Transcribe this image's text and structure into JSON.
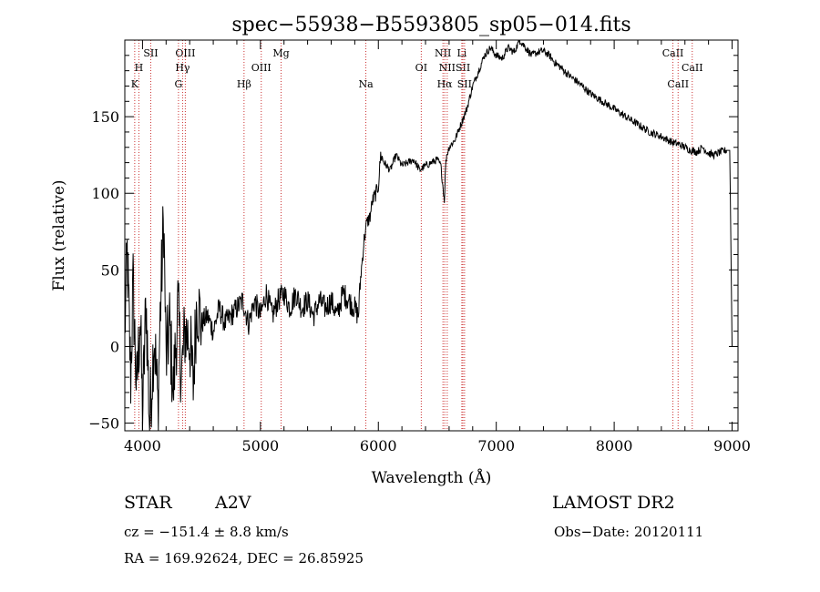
{
  "chart_data": {
    "type": "line",
    "title": "spec−55938−B5593805_sp05−014.fits",
    "xlabel": "Wavelength (Å)",
    "ylabel": "Flux (relative)",
    "xlim": [
      3850,
      9050
    ],
    "ylim": [
      -55,
      200
    ],
    "xticks": [
      4000,
      5000,
      6000,
      7000,
      8000,
      9000
    ],
    "xtick_labels": [
      "4000",
      "5000",
      "6000",
      "7000",
      "8000",
      "9000"
    ],
    "yticks": [
      -50,
      0,
      50,
      100,
      150
    ],
    "ytick_labels": [
      "−50",
      "0",
      "50",
      "100",
      "150"
    ],
    "series": [
      {
        "x": [
          3850,
          3870,
          3900,
          3920,
          3950,
          3980,
          4000,
          4030,
          4060,
          4100,
          4130,
          4150,
          4180,
          4200,
          4230,
          4260,
          4300,
          4330,
          4360,
          4400,
          4430,
          4460,
          4500,
          4550,
          4600,
          4650,
          4700,
          4750,
          4800,
          4850,
          4900,
          4950,
          5000,
          5050,
          5100,
          5150,
          5200,
          5250,
          5300,
          5350,
          5400,
          5450,
          5500,
          5550,
          5600,
          5650,
          5700,
          5750,
          5800,
          5830,
          5850,
          5880,
          5900,
          5930,
          5950,
          5980,
          6000,
          6020,
          6050,
          6100,
          6150,
          6200,
          6250,
          6300,
          6350,
          6400,
          6450,
          6500,
          6530,
          6560,
          6570,
          6580,
          6600,
          6650,
          6700,
          6750,
          6800,
          6850,
          6900,
          6950,
          7000,
          7050,
          7100,
          7150,
          7200,
          7250,
          7300,
          7350,
          7400,
          7450,
          7500,
          7550,
          7600,
          7700,
          7800,
          7900,
          8000,
          8100,
          8200,
          8300,
          8400,
          8500,
          8550,
          8600,
          8650,
          8700,
          8750,
          8800,
          8850,
          8900,
          8950,
          8980,
          9000
        ],
        "y": [
          10,
          60,
          -20,
          40,
          -30,
          20,
          -45,
          30,
          -50,
          10,
          -40,
          20,
          85,
          -10,
          15,
          -30,
          25,
          -20,
          10,
          5,
          -25,
          30,
          15,
          20,
          10,
          25,
          15,
          20,
          25,
          30,
          15,
          30,
          20,
          35,
          20,
          30,
          35,
          25,
          35,
          25,
          30,
          20,
          30,
          25,
          30,
          20,
          35,
          30,
          25,
          20,
          45,
          70,
          80,
          85,
          95,
          100,
          105,
          125,
          120,
          115,
          125,
          118,
          120,
          122,
          115,
          118,
          120,
          122,
          118,
          95,
          118,
          125,
          130,
          135,
          145,
          155,
          170,
          180,
          190,
          195,
          190,
          188,
          195,
          192,
          200,
          195,
          190,
          192,
          193,
          190,
          185,
          182,
          178,
          172,
          165,
          160,
          155,
          150,
          145,
          140,
          137,
          133,
          132,
          130,
          128,
          127,
          130,
          126,
          125,
          127,
          128,
          128,
          0
        ]
      }
    ],
    "line_markers": [
      {
        "name": "K",
        "x": 3934,
        "row": 3
      },
      {
        "name": "H",
        "x": 3969,
        "row": 2
      },
      {
        "name": "SII",
        "x": 4070,
        "row": 1
      },
      {
        "name": "OIII",
        "x": 4363,
        "row": 1
      },
      {
        "name": "Hγ",
        "x": 4340,
        "row": 2
      },
      {
        "name": "G",
        "x": 4305,
        "row": 3
      },
      {
        "name": "Hβ",
        "x": 4861,
        "row": 3
      },
      {
        "name": "OIII",
        "x": 5007,
        "row": 2
      },
      {
        "name": "Mg",
        "x": 5175,
        "row": 1
      },
      {
        "name": "Na",
        "x": 5894,
        "row": 3
      },
      {
        "name": "OI",
        "x": 6364,
        "row": 2
      },
      {
        "name": "NII",
        "x": 6548,
        "row": 1
      },
      {
        "name": "Li",
        "x": 6708,
        "row": 1
      },
      {
        "name": "NII",
        "x": 6584,
        "row": 2
      },
      {
        "name": "SII",
        "x": 6717,
        "row": 2
      },
      {
        "name": "Hα",
        "x": 6563,
        "row": 3
      },
      {
        "name": "SII",
        "x": 6731,
        "row": 3
      },
      {
        "name": "CaII",
        "x": 8498,
        "row": 1
      },
      {
        "name": "CaII",
        "x": 8662,
        "row": 2
      },
      {
        "name": "CaII",
        "x": 8542,
        "row": 3
      }
    ]
  },
  "info": {
    "object_class": "STAR",
    "subclass": "A2V",
    "survey": "LAMOST DR2",
    "redshift": "cz = −151.4 ± 8.8 km/s",
    "obs_date": "Obs−Date: 20120111",
    "coords": "RA = 169.92624, DEC =  26.85925"
  },
  "colors": {
    "spectrum": "#000000",
    "marker": "#cc3333",
    "axes": "#000000"
  }
}
